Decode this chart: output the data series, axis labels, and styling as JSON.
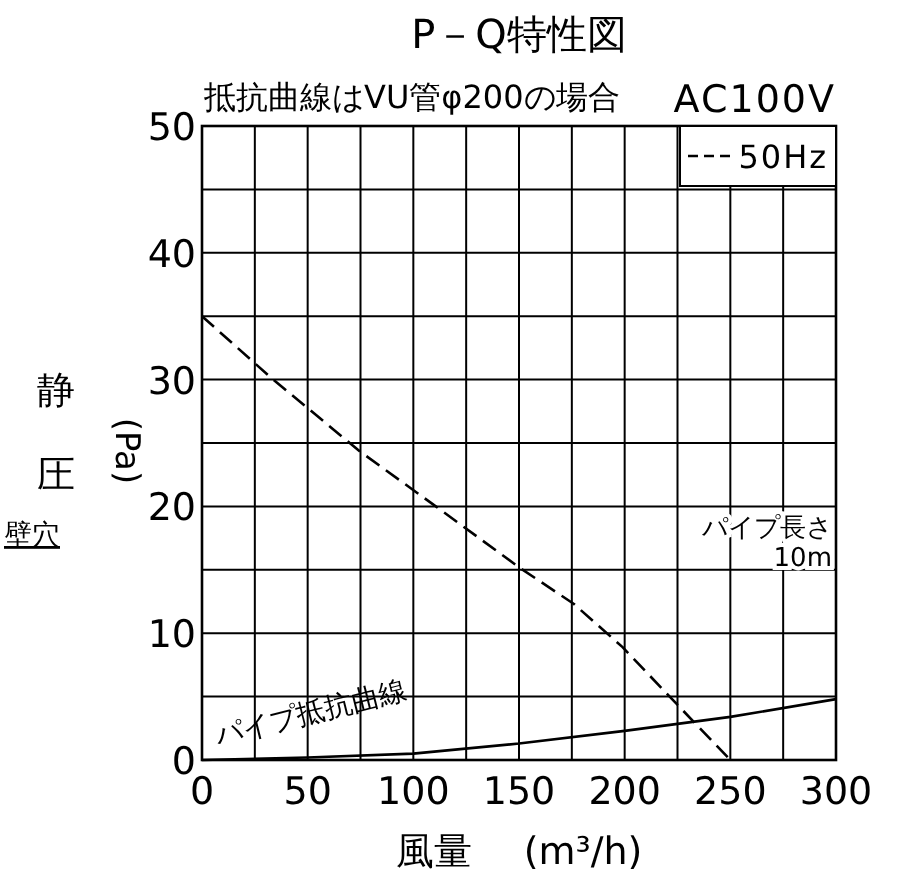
{
  "chart_data": {
    "type": "line",
    "title": "P－Q特性図",
    "subtitle": "抵抗曲線はVU管φ200の場合",
    "xlabel": "風量 (m³/h)",
    "ylabel": "静圧(Pa)",
    "annotations": [
      "AC100V",
      "パイプ長さ\n10m",
      "壁穴"
    ],
    "xlim": [
      0,
      300
    ],
    "ylim": [
      0,
      50
    ],
    "xticks": [
      0,
      {
        "value": 25,
        "label": null
      },
      50,
      {
        "value": 75,
        "label": null
      },
      100,
      {
        "value": 125,
        "label": null
      },
      150,
      {
        "value": 175,
        "label": null
      },
      200,
      {
        "value": 225,
        "label": null
      },
      250,
      {
        "value": 275,
        "label": null
      },
      300
    ],
    "yticks": [
      0,
      {
        "value": 5,
        "label": null
      },
      10,
      {
        "value": 15,
        "label": null
      },
      20,
      {
        "value": 25,
        "label": null
      },
      30,
      {
        "value": 35,
        "label": null
      },
      40,
      {
        "value": 45,
        "label": null
      },
      50
    ],
    "grid": true,
    "legend": "top right",
    "series": [
      {
        "name": "50Hz",
        "color": "#000000",
        "line_style": "dashed",
        "x": [
          0,
          33,
          75,
          109,
          150,
          176,
          199,
          223,
          250
        ],
        "values": [
          35,
          30.1,
          24.3,
          20.2,
          15.2,
          12.3,
          8.9,
          4.7,
          0
        ]
      },
      {
        "name": "パイプ抵抗曲線",
        "color": "#000000",
        "line_style": "solid",
        "x": [
          0,
          50,
          100,
          150,
          200,
          250,
          300
        ],
        "values": [
          0,
          0.2,
          0.5,
          1.3,
          2.3,
          3.4,
          4.8
        ]
      }
    ]
  }
}
